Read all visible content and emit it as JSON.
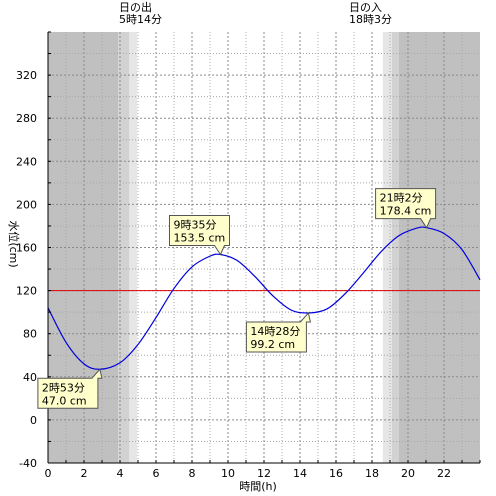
{
  "chart_data": {
    "type": "line",
    "xlabel": "時間(h)",
    "ylabel": "水位(cm)",
    "xlim": [
      0,
      24
    ],
    "ylim": [
      -40,
      360
    ],
    "x_ticks": [
      0,
      2,
      4,
      6,
      8,
      10,
      12,
      14,
      16,
      18,
      20,
      22
    ],
    "y_ticks": [
      -40,
      0,
      40,
      80,
      120,
      160,
      200,
      240,
      280,
      320
    ],
    "grid": true,
    "reference_line": {
      "y": 120,
      "color": "#e00000"
    },
    "series": [
      {
        "color": "#0000dd",
        "x": [
          0,
          1,
          2,
          2.883,
          4,
          5,
          6,
          7,
          8,
          9,
          9.583,
          10.5,
          11.5,
          12.5,
          13.5,
          14.467,
          15.5,
          16.5,
          17.5,
          18.5,
          19.5,
          20.5,
          21.033,
          22,
          23,
          24
        ],
        "y": [
          104,
          72,
          52,
          47.0,
          53,
          70,
          95,
          122,
          142,
          152,
          153.5,
          148,
          133,
          115,
          102,
          99.2,
          103,
          117,
          136,
          156,
          171,
          178,
          178.4,
          173,
          158,
          130
        ]
      }
    ],
    "annotations": [
      {
        "line1": "2時53分",
        "line2": "47.0 cm",
        "x": 2.883,
        "y": 47.0
      },
      {
        "line1": "9時35分",
        "line2": "153.5 cm",
        "x": 9.583,
        "y": 153.5
      },
      {
        "line1": "14時28分",
        "line2": "99.2 cm",
        "x": 14.467,
        "y": 99.2
      },
      {
        "line1": "21時2分",
        "line2": "178.4 cm",
        "x": 21.033,
        "y": 178.4
      }
    ],
    "sun": {
      "sunrise_title": "日の出",
      "sunrise_time": "5時14分",
      "sunrise_hour": 5.233,
      "sunset_title": "日の入",
      "sunset_time": "18時3分",
      "sunset_hour": 18.05
    },
    "shading": {
      "night_color": "#c0c0c0",
      "twilight_dark_color": "#d2d2d2",
      "twilight_light_color": "#e6e6e6",
      "morning_night_end": 3.9,
      "morning_twilight_dark_end": 4.5,
      "morning_twilight_light_end": 4.95,
      "evening_twilight_light_start": 18.6,
      "evening_twilight_dark_start": 19.1,
      "evening_night_start": 19.5
    }
  }
}
